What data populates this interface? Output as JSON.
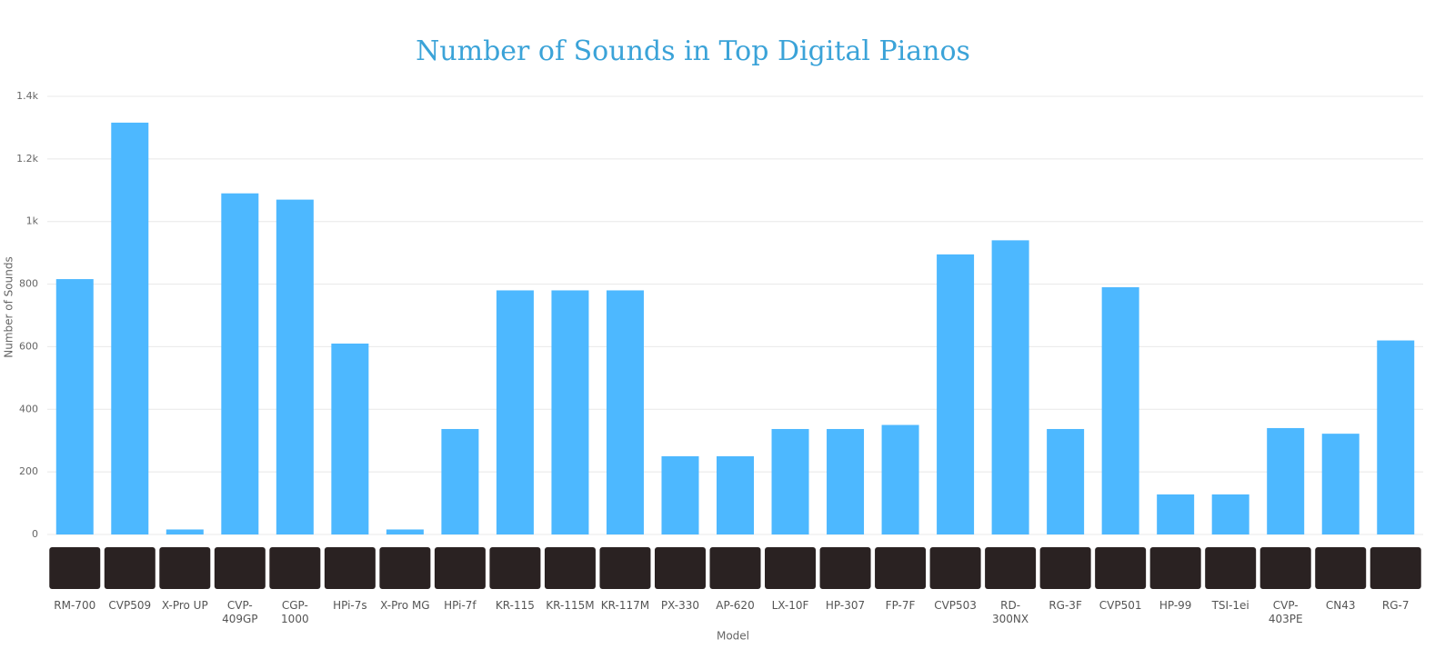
{
  "chart_data": {
    "type": "bar",
    "title": "Number of Sounds in Top Digital Pianos",
    "x_label": "Model",
    "y_label": "Number of Sounds",
    "categories": [
      "RM-700",
      "CVP509",
      "X-Pro UP",
      "CVP-409GP",
      "CGP-1000",
      "HPi-7s",
      "X-Pro MG",
      "HPi-7f",
      "KR-115",
      "KR-115M",
      "KR-117M",
      "PX-330",
      "AP-620",
      "LX-10F",
      "HP-307",
      "FP-7F",
      "CVP503",
      "RD-300NX",
      "RG-3F",
      "CVP501",
      "HP-99",
      "TSI-1ei",
      "CVP-403PE",
      "CN43",
      "RG-7"
    ],
    "values": [
      816,
      1316,
      16,
      1090,
      1070,
      610,
      16,
      337,
      780,
      780,
      780,
      250,
      250,
      337,
      337,
      350,
      895,
      940,
      337,
      790,
      128,
      128,
      340,
      322,
      620
    ],
    "color": "#4db8ff",
    "ylim": [
      0,
      1400
    ],
    "yticks": [
      0,
      200,
      400,
      600,
      800,
      {
        "value": 1000,
        "label": "1k"
      },
      {
        "value": 1200,
        "label": "1.2k"
      },
      {
        "value": 1400,
        "label": "1.4k"
      }
    ],
    "grid": true
  }
}
